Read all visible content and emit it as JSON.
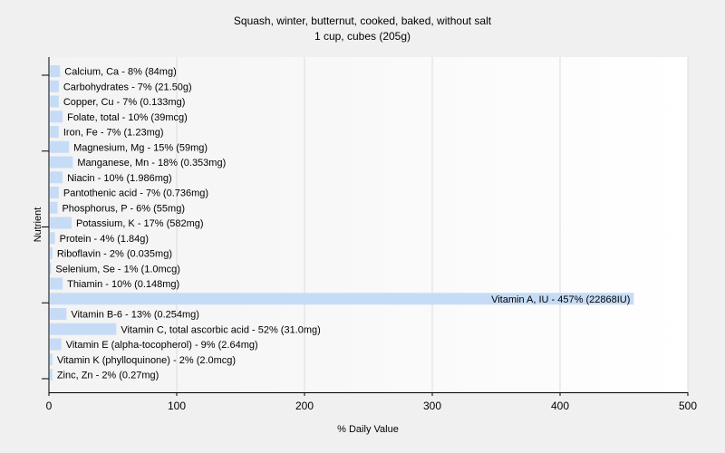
{
  "chart_data": {
    "type": "bar",
    "orientation": "horizontal",
    "title": "Squash, winter, butternut, cooked, baked, without salt",
    "subtitle": "1 cup, cubes (205g)",
    "xlabel": "% Daily Value",
    "ylabel": "Nutrient",
    "xlim": [
      0,
      500
    ],
    "xticks": [
      0,
      100,
      200,
      300,
      400,
      500
    ],
    "grid": true,
    "bar_color": "#c6dcf6",
    "categories": [
      "Calcium, Ca",
      "Carbohydrates",
      "Copper, Cu",
      "Folate, total",
      "Iron, Fe",
      "Magnesium, Mg",
      "Manganese, Mn",
      "Niacin",
      "Pantothenic acid",
      "Phosphorus, P",
      "Potassium, K",
      "Protein",
      "Riboflavin",
      "Selenium, Se",
      "Thiamin",
      "Vitamin A, IU",
      "Vitamin B-6",
      "Vitamin C, total ascorbic acid",
      "Vitamin E (alpha-tocopherol)",
      "Vitamin K (phylloquinone)",
      "Zinc, Zn"
    ],
    "values": [
      8,
      7,
      7,
      10,
      7,
      15,
      18,
      10,
      7,
      6,
      17,
      4,
      2,
      1,
      10,
      457,
      13,
      52,
      9,
      2,
      2
    ],
    "labels": [
      "Calcium, Ca - 8% (84mg)",
      "Carbohydrates - 7% (21.50g)",
      "Copper, Cu - 7% (0.133mg)",
      "Folate, total - 10% (39mcg)",
      "Iron, Fe - 7% (1.23mg)",
      "Magnesium, Mg - 15% (59mg)",
      "Manganese, Mn - 18% (0.353mg)",
      "Niacin - 10% (1.986mg)",
      "Pantothenic acid - 7% (0.736mg)",
      "Phosphorus, P - 6% (55mg)",
      "Potassium, K - 17% (582mg)",
      "Protein - 4% (1.84g)",
      "Riboflavin - 2% (0.035mg)",
      "Selenium, Se - 1% (1.0mcg)",
      "Thiamin - 10% (0.148mg)",
      "Vitamin A, IU - 457% (22868IU)",
      "Vitamin B-6 - 13% (0.254mg)",
      "Vitamin C, total ascorbic acid - 52% (31.0mg)",
      "Vitamin E (alpha-tocopherol) - 9% (2.64mg)",
      "Vitamin K (phylloquinone) - 2% (2.0mcg)",
      "Zinc, Zn - 2% (0.27mg)"
    ]
  }
}
